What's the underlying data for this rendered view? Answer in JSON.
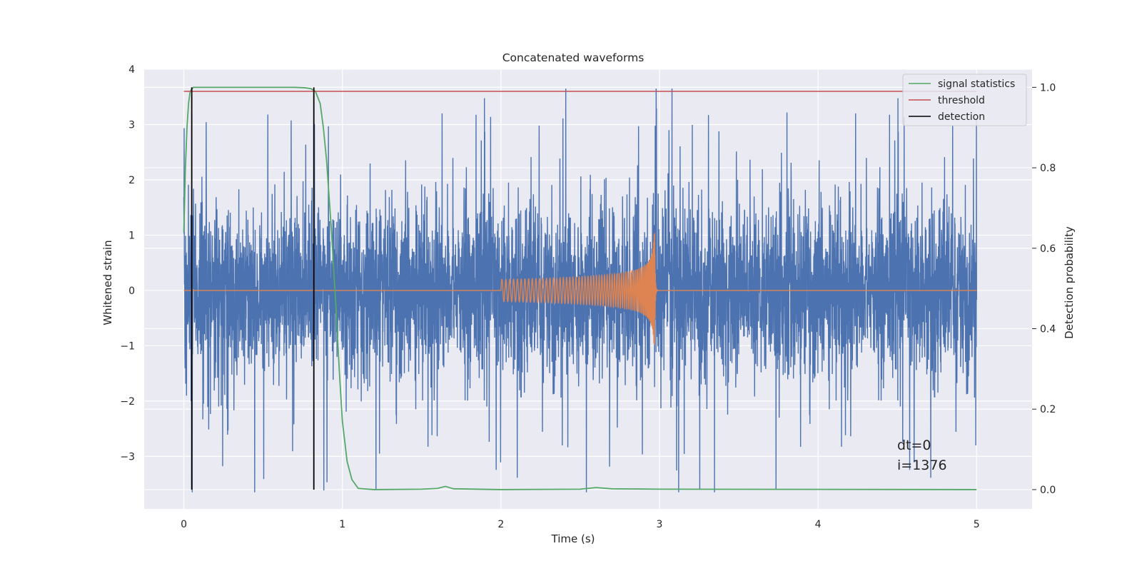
{
  "chart_data": {
    "type": "line",
    "title": "Concatenated waveforms",
    "xlabel": "Time (s)",
    "ylabel": "Whitened strain",
    "y2label": "Detection probability",
    "xlim": [
      -0.25,
      5.35
    ],
    "ylim": [
      -3.95,
      4.0
    ],
    "y2lim": [
      -0.048,
      1.045
    ],
    "xticks": [
      0,
      1,
      2,
      3,
      4,
      5
    ],
    "yticks": [
      -3,
      -2,
      -1,
      0,
      1,
      2,
      3,
      4
    ],
    "y2ticks": [
      0.0,
      0.2,
      0.4,
      0.6,
      0.8,
      1.0
    ],
    "x_tick_labels": [
      "0",
      "1",
      "2",
      "3",
      "4",
      "5"
    ],
    "y_tick_labels": [
      "−3",
      "−2",
      "−1",
      "0",
      "1",
      "2",
      "3",
      "4"
    ],
    "y2_tick_labels": [
      "0.0",
      "0.2",
      "0.4",
      "0.6",
      "0.8",
      "1.0"
    ],
    "grid": true,
    "legend_position": "top-right",
    "colors": {
      "background": "#eaeaf2",
      "grid": "#ffffff",
      "noise": "#4c72b0",
      "injection": "#dd8452",
      "signal_statistics": "#55a868",
      "threshold": "#c44e52",
      "detection": "#000000"
    },
    "series": [
      {
        "name": "noise",
        "axis": "left",
        "description_x_range": [
          0,
          5
        ],
        "amplitude_sigma": 0.75,
        "spike_max": 3.65,
        "spike_min": -3.65
      },
      {
        "name": "injection",
        "axis": "left",
        "t_start": 2.0,
        "t_merge": 2.97,
        "t_end": 5.0,
        "start_amplitude": 0.2,
        "peak_amplitude": 1.3,
        "peak_min": -1.2
      },
      {
        "name": "signal statistics",
        "axis": "right",
        "x": [
          0.0,
          0.01,
          0.02,
          0.03,
          0.04,
          0.06,
          0.08,
          0.1,
          0.15,
          0.3,
          0.5,
          0.7,
          0.76,
          0.8,
          0.83,
          0.86,
          0.88,
          0.9,
          0.93,
          0.96,
          0.98,
          1.0,
          1.03,
          1.06,
          1.1,
          1.2,
          1.5,
          1.6,
          1.65,
          1.7,
          2.0,
          2.5,
          2.6,
          2.7,
          3.0,
          5.0
        ],
        "y": [
          0.64,
          0.8,
          0.9,
          0.96,
          0.99,
          1.0,
          1.0,
          1.0,
          1.0,
          1.0,
          1.0,
          1.0,
          0.999,
          0.997,
          0.99,
          0.96,
          0.9,
          0.82,
          0.65,
          0.45,
          0.3,
          0.17,
          0.07,
          0.025,
          0.003,
          0.0,
          0.001,
          0.003,
          0.008,
          0.002,
          0.0,
          0.001,
          0.005,
          0.002,
          0.001,
          0.0
        ]
      },
      {
        "name": "threshold",
        "axis": "right",
        "x": [
          0,
          5
        ],
        "y": [
          0.99,
          0.99
        ]
      },
      {
        "name": "detection",
        "axis": "right",
        "x": [
          0.05,
          0.82
        ],
        "y_range": [
          0.0,
          1.0
        ]
      }
    ],
    "legend": [
      "signal statistics",
      "threshold",
      "detection"
    ],
    "annotations": [
      "dt=0",
      "i=1376"
    ]
  }
}
